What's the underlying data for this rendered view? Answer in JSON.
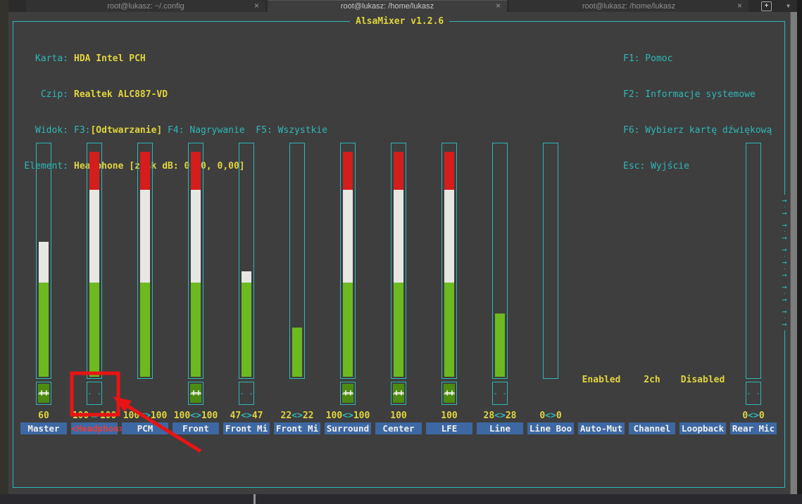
{
  "terminal": {
    "tabs": [
      {
        "title": "root@lukasz: ~/.config",
        "active": false
      },
      {
        "title": "root@lukasz: /home/lukasz",
        "active": true
      },
      {
        "title": "root@lukasz: /home/lukasz",
        "active": false
      }
    ],
    "glyphs": {
      "close": "×",
      "new_tab": "+",
      "menu": "▼"
    }
  },
  "mixer": {
    "title": "AlsaMixer v1.2.6",
    "info": {
      "card_label": "Karta:",
      "card": "HDA Intel PCH",
      "chip_label": "Czip:",
      "chip": "Realtek ALC887-VD",
      "view_label": "Widok:",
      "view_f3": "F3:",
      "view_active": "[Odtwarzanie]",
      "view_rest": " F4: Nagrywanie  F5: Wszystkie",
      "item_label": "Element:",
      "item": "Headphone [zysk dB: 0,00, 0,00]"
    },
    "help": [
      "F1: Pomoc",
      "F2: Informacje systemowe",
      "F6: Wybierz kartę dźwiękową",
      "Esc: Wyjście"
    ],
    "glyphs": {
      "unmuted": "++",
      "muted": "- -",
      "scroll_arrow": "→",
      "value_separator": "<>"
    },
    "scroll_arrow_count": 11,
    "channels": [
      {
        "label": "Master",
        "value": "60",
        "volume": 60,
        "bar": true,
        "mute": "unmuted",
        "status": null,
        "selected": false
      },
      {
        "label": "<Headphon>",
        "value": "100<>100",
        "volume": 100,
        "bar": true,
        "mute": "muted",
        "status": null,
        "selected": true
      },
      {
        "label": "PCM",
        "value": "100<>100",
        "volume": 100,
        "bar": true,
        "mute": null,
        "status": null,
        "selected": false
      },
      {
        "label": "Front",
        "value": "100<>100",
        "volume": 100,
        "bar": true,
        "mute": "unmuted",
        "status": null,
        "selected": false
      },
      {
        "label": "Front Mi",
        "value": "47<>47",
        "volume": 47,
        "bar": true,
        "mute": "muted",
        "status": null,
        "selected": false
      },
      {
        "label": "Front Mi",
        "value": "22<>22",
        "volume": 22,
        "bar": true,
        "mute": null,
        "status": null,
        "selected": false
      },
      {
        "label": "Surround",
        "value": "100<>100",
        "volume": 100,
        "bar": true,
        "mute": "unmuted",
        "status": null,
        "selected": false
      },
      {
        "label": "Center",
        "value": "100",
        "volume": 100,
        "bar": true,
        "mute": "unmuted",
        "status": null,
        "selected": false
      },
      {
        "label": "LFE",
        "value": "100",
        "volume": 100,
        "bar": true,
        "mute": "unmuted",
        "status": null,
        "selected": false
      },
      {
        "label": "Line",
        "value": "28<>28",
        "volume": 28,
        "bar": true,
        "mute": "muted",
        "status": null,
        "selected": false
      },
      {
        "label": "Line Boo",
        "value": "0<>0",
        "volume": 0,
        "bar": true,
        "mute": null,
        "status": null,
        "selected": false
      },
      {
        "label": "Auto-Mut",
        "value": "",
        "volume": null,
        "bar": false,
        "mute": null,
        "status": "Enabled",
        "selected": false
      },
      {
        "label": "Channel",
        "value": "",
        "volume": null,
        "bar": false,
        "mute": null,
        "status": "2ch",
        "selected": false
      },
      {
        "label": "Loopback",
        "value": "",
        "volume": null,
        "bar": false,
        "mute": null,
        "status": "Disabled",
        "selected": false
      },
      {
        "label": "Rear Mic",
        "value": "0<>0",
        "volume": 0,
        "bar": true,
        "mute": "muted",
        "status": null,
        "selected": false
      }
    ]
  },
  "colors": {
    "terminal_bg": "#3e3e3e",
    "border_cyan": "#2fb7b7",
    "text_yellow": "#e0d43e",
    "bar_green": "#6cba1f",
    "bar_white": "#e6e6e2",
    "bar_red": "#d41d1d",
    "mute_green": "#4c8c12",
    "label_bg": "#3d68a4",
    "label_fg": "#efefec",
    "selected_fg": "#e03e3e",
    "annotation_red": "#e81414"
  },
  "annotation": {
    "type": "highlight-rect-and-arrow",
    "target": "headphone-mute-switch",
    "color": "#e81414"
  }
}
